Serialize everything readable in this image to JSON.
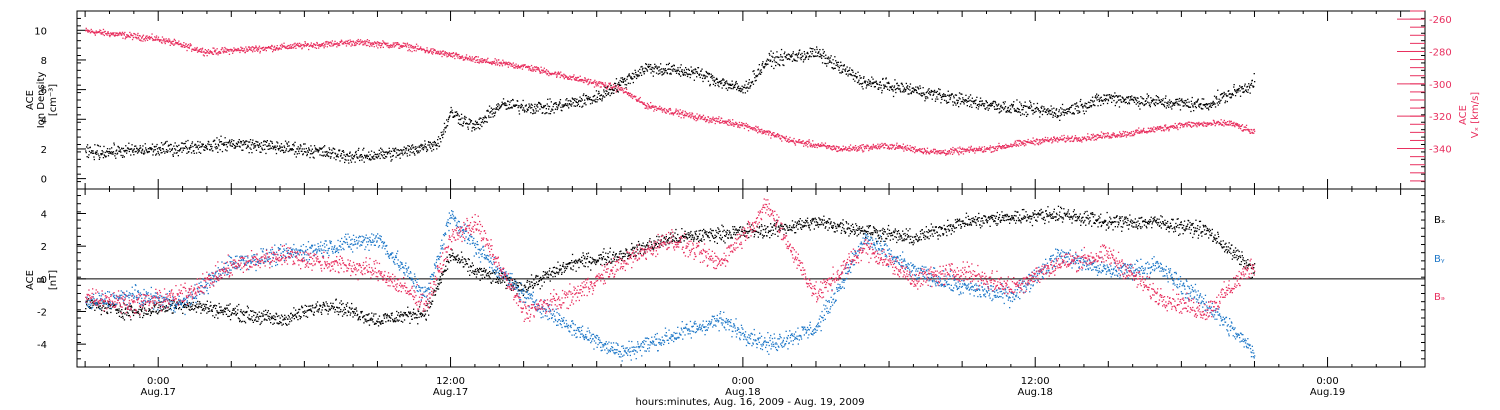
{
  "x_axis": {
    "tick_times": [
      "0:00",
      "12:00",
      "0:00",
      "12:00",
      "0:00"
    ],
    "tick_dates": [
      "Aug.17",
      "Aug.17",
      "Aug.18",
      "Aug.18",
      "Aug.19"
    ],
    "title": "hours:minutes, Aug. 16, 2009 - Aug. 19, 2009"
  },
  "colors": {
    "black": "#000000",
    "pink": "#e8305f",
    "blue": "#1f78c8"
  },
  "chart_data": [
    {
      "type": "scatter",
      "name": "top-panel",
      "left_axis": {
        "label_lines": [
          "ACE",
          "Ion Density",
          "[cm⁻³]"
        ],
        "ticks": [
          0,
          2,
          4,
          6,
          8,
          10
        ],
        "ylim": [
          -0.7,
          11.3
        ]
      },
      "right_axis": {
        "label_lines": [
          "ACE",
          "Vₓ [km/s]"
        ],
        "ticks": [
          -260,
          -280,
          -300,
          -320,
          -340
        ],
        "ylim": [
          -365,
          -255
        ]
      },
      "xlim": [
        "2009-08-16T20:40",
        "2009-08-19T04:00"
      ],
      "series": [
        {
          "color": "black",
          "axis": "left",
          "x": [
            "2009-08-16T21:00",
            "2009-08-17T00:00",
            "2009-08-17T03:00",
            "2009-08-17T06:00",
            "2009-08-17T08:00",
            "2009-08-17T10:00",
            "2009-08-17T11:30",
            "2009-08-17T12:00",
            "2009-08-17T13:00",
            "2009-08-17T14:00",
            "2009-08-17T16:00",
            "2009-08-17T18:00",
            "2009-08-17T20:00",
            "2009-08-17T22:00",
            "2009-08-18T00:00",
            "2009-08-18T01:00",
            "2009-08-18T03:00",
            "2009-08-18T05:00",
            "2009-08-18T07:00",
            "2009-08-18T09:00",
            "2009-08-18T11:00",
            "2009-08-18T13:00",
            "2009-08-18T15:00",
            "2009-08-18T17:00",
            "2009-08-18T19:00",
            "2009-08-18T21:00"
          ],
          "y": [
            1.8,
            2.0,
            2.4,
            2.0,
            1.5,
            1.8,
            2.5,
            4.5,
            3.5,
            5.0,
            4.8,
            5.5,
            7.5,
            7.2,
            6.0,
            8.0,
            8.5,
            6.5,
            6.0,
            5.3,
            4.8,
            4.5,
            5.5,
            5.2,
            5.0,
            6.5
          ]
        },
        {
          "color": "pink",
          "axis": "right",
          "x": [
            "2009-08-16T21:00",
            "2009-08-17T00:00",
            "2009-08-17T02:00",
            "2009-08-17T04:00",
            "2009-08-17T06:00",
            "2009-08-17T08:00",
            "2009-08-17T10:00",
            "2009-08-17T12:00",
            "2009-08-17T13:00",
            "2009-08-17T15:00",
            "2009-08-17T17:00",
            "2009-08-17T19:00",
            "2009-08-17T20:00",
            "2009-08-17T22:00",
            "2009-08-18T00:00",
            "2009-08-18T02:00",
            "2009-08-18T04:00",
            "2009-08-18T06:00",
            "2009-08-18T08:00",
            "2009-08-18T10:00",
            "2009-08-18T12:00",
            "2009-08-18T14:00",
            "2009-08-18T16:00",
            "2009-08-18T18:00",
            "2009-08-18T20:00",
            "2009-08-18T21:00"
          ],
          "y": [
            -267,
            -272,
            -280,
            -278,
            -276,
            -274,
            -276,
            -282,
            -285,
            -289,
            -296,
            -303,
            -313,
            -320,
            -325,
            -335,
            -340,
            -338,
            -342,
            -340,
            -335,
            -333,
            -330,
            -325,
            -324,
            -330
          ]
        }
      ]
    },
    {
      "type": "scatter",
      "name": "bottom-panel",
      "left_axis": {
        "label_lines": [
          "ACE",
          "B",
          "[nT]"
        ],
        "ticks": [
          -4,
          -2,
          0,
          2,
          4
        ],
        "ylim": [
          -5.4,
          5.5
        ]
      },
      "xlim": [
        "2009-08-16T20:40",
        "2009-08-19T04:00"
      ],
      "zero_line": true,
      "legend": [
        "Bₓ",
        "Bᵧ",
        "Bₔ"
      ],
      "series": [
        {
          "name": "Bₓ",
          "color": "black",
          "x": [
            "2009-08-16T21:00",
            "2009-08-16T23:00",
            "2009-08-17T01:00",
            "2009-08-17T03:00",
            "2009-08-17T05:00",
            "2009-08-17T07:00",
            "2009-08-17T09:00",
            "2009-08-17T11:00",
            "2009-08-17T12:00",
            "2009-08-17T13:00",
            "2009-08-17T15:00",
            "2009-08-17T17:00",
            "2009-08-17T19:00",
            "2009-08-17T21:00",
            "2009-08-17T23:00",
            "2009-08-18T01:00",
            "2009-08-18T03:00",
            "2009-08-18T05:00",
            "2009-08-18T07:00",
            "2009-08-18T09:00",
            "2009-08-18T11:00",
            "2009-08-18T13:00",
            "2009-08-18T15:00",
            "2009-08-18T17:00",
            "2009-08-18T19:00",
            "2009-08-18T21:00"
          ],
          "y": [
            -1.5,
            -2.0,
            -1.5,
            -2.0,
            -2.5,
            -1.5,
            -2.5,
            -2.0,
            1.5,
            0.5,
            -0.5,
            1.0,
            1.5,
            2.5,
            2.8,
            3.0,
            3.5,
            3.0,
            2.5,
            3.5,
            3.8,
            4.0,
            3.5,
            3.5,
            3.0,
            0.5
          ]
        },
        {
          "name": "Bᵧ",
          "color": "blue",
          "x": [
            "2009-08-16T21:00",
            "2009-08-16T23:00",
            "2009-08-17T01:00",
            "2009-08-17T03:00",
            "2009-08-17T05:00",
            "2009-08-17T07:00",
            "2009-08-17T09:00",
            "2009-08-17T11:00",
            "2009-08-17T12:00",
            "2009-08-17T13:00",
            "2009-08-17T15:00",
            "2009-08-17T17:00",
            "2009-08-17T19:00",
            "2009-08-17T21:00",
            "2009-08-17T23:00",
            "2009-08-18T01:00",
            "2009-08-18T03:00",
            "2009-08-18T05:00",
            "2009-08-18T07:00",
            "2009-08-18T09:00",
            "2009-08-18T11:00",
            "2009-08-18T13:00",
            "2009-08-18T15:00",
            "2009-08-18T17:00",
            "2009-08-18T19:00",
            "2009-08-18T21:00"
          ],
          "y": [
            -1.5,
            -1.0,
            -1.5,
            1.0,
            1.5,
            2.0,
            2.5,
            -1.0,
            4.0,
            2.0,
            -1.0,
            -3.0,
            -4.5,
            -3.5,
            -2.5,
            -4.0,
            -3.0,
            2.5,
            0.5,
            -0.5,
            -1.0,
            1.5,
            0.5,
            0.8,
            -1.5,
            -4.5
          ]
        },
        {
          "name": "Bₔ",
          "color": "pink",
          "x": [
            "2009-08-16T21:00",
            "2009-08-16T23:00",
            "2009-08-17T01:00",
            "2009-08-17T03:00",
            "2009-08-17T05:00",
            "2009-08-17T07:00",
            "2009-08-17T09:00",
            "2009-08-17T11:00",
            "2009-08-17T12:00",
            "2009-08-17T13:00",
            "2009-08-17T15:00",
            "2009-08-17T17:00",
            "2009-08-17T19:00",
            "2009-08-17T21:00",
            "2009-08-17T23:00",
            "2009-08-18T01:00",
            "2009-08-18T03:00",
            "2009-08-18T05:00",
            "2009-08-18T07:00",
            "2009-08-18T09:00",
            "2009-08-18T11:00",
            "2009-08-18T13:00",
            "2009-08-18T15:00",
            "2009-08-18T17:00",
            "2009-08-18T19:00",
            "2009-08-18T21:00"
          ],
          "y": [
            -1.0,
            -1.5,
            -1.0,
            0.8,
            1.5,
            1.0,
            0.5,
            -1.5,
            2.5,
            3.5,
            -2.0,
            -1.0,
            1.0,
            2.5,
            1.0,
            4.5,
            -1.0,
            2.0,
            0.0,
            0.5,
            -0.5,
            1.0,
            1.5,
            -1.0,
            -2.0,
            1.0
          ]
        }
      ]
    }
  ]
}
